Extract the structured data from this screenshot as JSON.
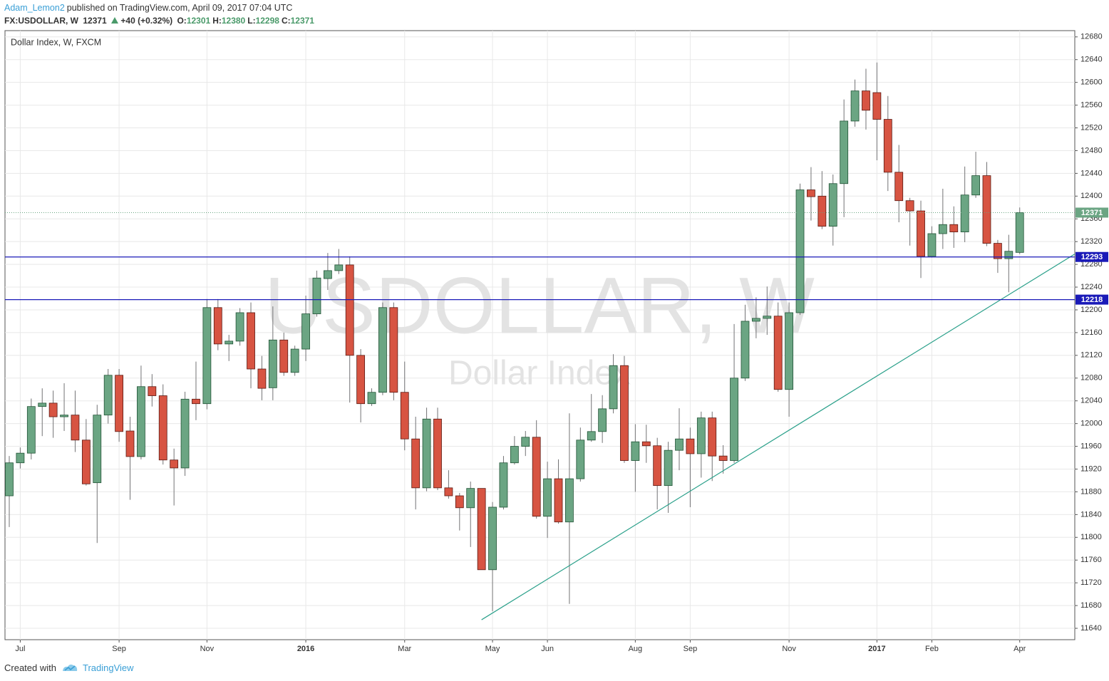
{
  "header": {
    "author": "Adam_Lemon2",
    "published": "published on TradingView.com, April 09, 2017 07:04 UTC",
    "symbol": "FX:USDOLLAR, W",
    "last": "12371",
    "change": "+40 (+0.32%)",
    "ohlc": [
      {
        "label": "O:",
        "value": "12301"
      },
      {
        "label": "H:",
        "value": "12380"
      },
      {
        "label": "L:",
        "value": "12298"
      },
      {
        "label": "C:",
        "value": "12371"
      }
    ]
  },
  "chart_data": {
    "type": "candlestick",
    "title": "Dollar Index, W, FXCM",
    "watermark": [
      "USDOLLAR, W",
      "Dollar Index"
    ],
    "categories": [
      null,
      "Jul",
      null,
      null,
      null,
      null,
      null,
      null,
      null,
      null,
      "Sep",
      null,
      null,
      null,
      null,
      null,
      null,
      null,
      "Nov",
      null,
      null,
      null,
      null,
      null,
      null,
      null,
      null,
      "2016",
      null,
      null,
      null,
      null,
      null,
      null,
      null,
      null,
      "Mar",
      null,
      null,
      null,
      null,
      null,
      null,
      null,
      "May",
      null,
      null,
      null,
      null,
      "Jun",
      null,
      null,
      null,
      null,
      null,
      null,
      null,
      "Aug",
      null,
      null,
      null,
      null,
      "Sep",
      null,
      null,
      null,
      null,
      null,
      null,
      null,
      null,
      "Nov",
      null,
      null,
      null,
      null,
      null,
      null,
      null,
      "2017",
      null,
      null,
      null,
      null,
      "Feb",
      null,
      null,
      null,
      null,
      null,
      null,
      null,
      "Apr"
    ],
    "open": [
      11873,
      11931,
      11948,
      12030,
      12036,
      12012,
      12015,
      11971,
      11896,
      12015,
      12085,
      11987,
      11942,
      12065,
      12049,
      11936,
      11922,
      12043,
      12035,
      12204,
      12140,
      12145,
      12195,
      12096,
      12063,
      12147,
      12090,
      12131,
      12193,
      12255,
      12269,
      12279,
      12120,
      12035,
      12055,
      12204,
      12055,
      11973,
      11887,
      12008,
      11887,
      11873,
      11852,
      11886,
      11743,
      11853,
      11931,
      11960,
      11976,
      11837,
      11903,
      11827,
      11903,
      11971,
      11986,
      12026,
      12102,
      11935,
      11968,
      11961,
      11891,
      11953,
      11973,
      11947,
      12010,
      11943,
      11935,
      12080,
      12180,
      12185,
      12189,
      12060,
      12195,
      12411,
      12400,
      12347,
      12422,
      12532,
      12585,
      12582,
      12535,
      12442,
      12392,
      12374,
      12294,
      12334,
      12350,
      12337,
      12402,
      12436,
      12317,
      12290,
      12301
    ],
    "high": [
      11943,
      11958,
      12044,
      12062,
      12058,
      12071,
      12058,
      12008,
      12033,
      12096,
      12096,
      12012,
      12102,
      12087,
      12069,
      11956,
      12056,
      12109,
      12219,
      12219,
      12156,
      12203,
      12213,
      12119,
      12206,
      12160,
      12137,
      12225,
      12269,
      12300,
      12307,
      12294,
      12131,
      12062,
      12213,
      12213,
      12109,
      12012,
      12028,
      12028,
      11918,
      11878,
      11898,
      11886,
      11862,
      11943,
      11978,
      11987,
      12006,
      11933,
      11937,
      12018,
      11993,
      12052,
      12050,
      12122,
      12119,
      11999,
      11998,
      11975,
      11968,
      12027,
      11993,
      12021,
      12021,
      11962,
      12175,
      12209,
      12222,
      12241,
      12213,
      12213,
      12422,
      12451,
      12444,
      12438,
      12570,
      12605,
      12624,
      12635,
      12576,
      12490,
      12397,
      12392,
      12347,
      12413,
      12382,
      12452,
      12478,
      12460,
      12323,
      12332,
      12380
    ],
    "low": [
      11818,
      11921,
      11937,
      11978,
      11975,
      11987,
      11950,
      11891,
      11790,
      12000,
      11968,
      11866,
      11937,
      12030,
      11928,
      11856,
      11908,
      12006,
      12025,
      12129,
      12110,
      12137,
      12062,
      12041,
      12041,
      12084,
      12084,
      12110,
      12188,
      12235,
      12263,
      12037,
      12002,
      12031,
      12050,
      12041,
      11953,
      11849,
      11881,
      11883,
      11868,
      11812,
      11783,
      11743,
      11670,
      11849,
      11928,
      11943,
      11833,
      11799,
      11824,
      11683,
      11898,
      11968,
      11966,
      12018,
      11931,
      11880,
      11931,
      11849,
      11843,
      11918,
      11853,
      11905,
      11899,
      11912,
      11931,
      12075,
      12150,
      12156,
      12056,
      12012,
      12191,
      12357,
      12342,
      12313,
      12363,
      12522,
      12517,
      12463,
      12409,
      12354,
      12313,
      12256,
      12292,
      12307,
      12309,
      12319,
      12397,
      12312,
      12265,
      12231,
      12298
    ],
    "close": [
      11931,
      11948,
      12030,
      12036,
      12012,
      12015,
      11971,
      11894,
      12015,
      12085,
      11986,
      11942,
      12065,
      12049,
      11936,
      11922,
      12043,
      12035,
      12204,
      12140,
      12145,
      12195,
      12096,
      12062,
      12147,
      12090,
      12131,
      12193,
      12256,
      12269,
      12279,
      12120,
      12035,
      12055,
      12204,
      12055,
      11973,
      11887,
      12008,
      11887,
      11873,
      11852,
      11886,
      11743,
      11853,
      11931,
      11960,
      11976,
      11837,
      11903,
      11827,
      11903,
      11971,
      11986,
      12026,
      12102,
      11935,
      11968,
      11961,
      11891,
      11953,
      11973,
      11947,
      12010,
      11943,
      11935,
      12080,
      12180,
      12185,
      12189,
      12060,
      12195,
      12411,
      12399,
      12347,
      12422,
      12532,
      12585,
      12551,
      12535,
      12442,
      12392,
      12374,
      12294,
      12334,
      12350,
      12337,
      12402,
      12436,
      12317,
      12290,
      12303,
      12371
    ],
    "up_color": "#6ba583",
    "down_color": "#d75442",
    "ylim": [
      11620,
      12691
    ],
    "yticks": [
      11640,
      11680,
      11720,
      11760,
      11800,
      11840,
      11880,
      11920,
      11960,
      12000,
      12040,
      12080,
      12120,
      12160,
      12200,
      12240,
      12280,
      12320,
      12360,
      12400,
      12440,
      12480,
      12520,
      12560,
      12600,
      12640,
      12680
    ],
    "grid": true,
    "price_lines": [
      {
        "value": 12293,
        "color": "#1a1ab8"
      },
      {
        "value": 12218,
        "color": "#1a1ab8"
      }
    ],
    "last_price": {
      "value": 12371,
      "color": "#6ba583"
    },
    "trendline": {
      "x": [
        43.0,
        97.0
      ],
      "y": [
        11655,
        12298
      ],
      "color": "#2aa08a"
    }
  },
  "footer": {
    "created": "Created with",
    "brand": "TradingView"
  }
}
